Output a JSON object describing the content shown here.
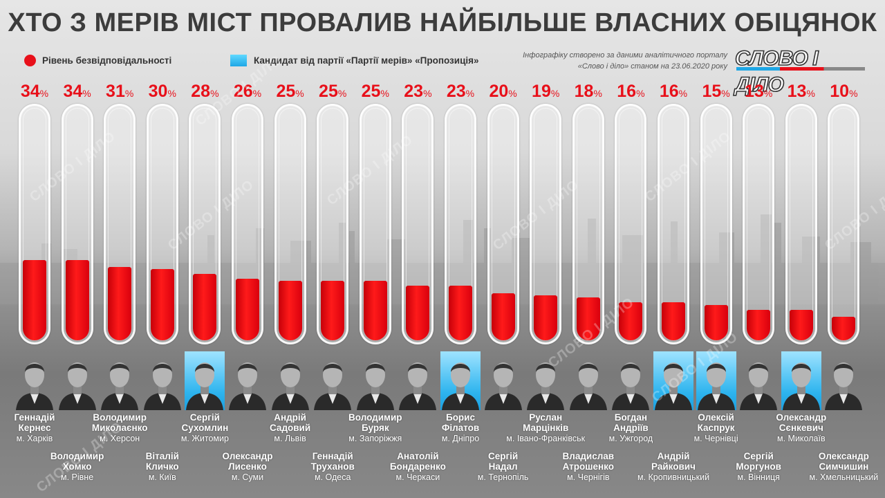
{
  "title": "ХТО З МЕРІВ МІСТ ПРОВАЛИВ НАЙБІЛЬШЕ ВЛАСНИХ ОБІЦЯНОК",
  "legend": {
    "red_label": "Рівень безвідповідальності",
    "blue_label": "Кандидат від партії «Партії мерів» «Пропозиція»"
  },
  "source": {
    "line1": "Інфографіку створено за даними аналітичного порталу",
    "line2": "«Слово і діло» станом на 23.06.2020 року"
  },
  "logo_text": "СЛОВО І ДІЛО",
  "watermark_text": "СЛОВО І ДІЛО",
  "colors": {
    "red": "#e8101a",
    "blue": "#1ea7e6"
  },
  "chart_data": {
    "type": "bar",
    "unit": "%",
    "ylim": [
      0,
      100
    ],
    "categories": [
      "Геннадій Кернес",
      "Володимир Хомко",
      "Володимир Миколаєнко",
      "Віталій Кличко",
      "Сергій Сухомлин",
      "Олександр Лисенко",
      "Андрій Садовий",
      "Геннадій Труханов",
      "Володимир Буряк",
      "Анатолій Бондаренко",
      "Борис Філатов",
      "Сергій Надал",
      "Руслан Марцінків",
      "Владислав Атрошенко",
      "Богдан Андріїв",
      "Андрій Райкович",
      "Олексій Каспрук",
      "Сергій Моргунов",
      "Олександр Сєнкевич",
      "Олександр Симчишин"
    ],
    "values": [
      34,
      34,
      31,
      30,
      28,
      26,
      25,
      25,
      25,
      23,
      23,
      20,
      19,
      18,
      16,
      16,
      15,
      13,
      13,
      10
    ]
  },
  "mayors": [
    {
      "first": "Геннадій",
      "last": "Кернес",
      "city": "м. Харків",
      "highlight": false
    },
    {
      "first": "Володимир",
      "last": "Хомко",
      "city": "м. Рівне",
      "highlight": false
    },
    {
      "first": "Володимир",
      "last": "Миколаєнко",
      "city": "м. Херсон",
      "highlight": false
    },
    {
      "first": "Віталій",
      "last": "Кличко",
      "city": "м. Київ",
      "highlight": false
    },
    {
      "first": "Сергій",
      "last": "Сухомлин",
      "city": "м. Житомир",
      "highlight": true
    },
    {
      "first": "Олександр",
      "last": "Лисенко",
      "city": "м. Суми",
      "highlight": false
    },
    {
      "first": "Андрій",
      "last": "Садовий",
      "city": "м. Львів",
      "highlight": false
    },
    {
      "first": "Геннадій",
      "last": "Труханов",
      "city": "м. Одеса",
      "highlight": false
    },
    {
      "first": "Володимир",
      "last": "Буряк",
      "city": "м. Запоріжжя",
      "highlight": false
    },
    {
      "first": "Анатолій",
      "last": "Бондаренко",
      "city": "м. Черкаси",
      "highlight": false
    },
    {
      "first": "Борис",
      "last": "Філатов",
      "city": "м. Дніпро",
      "highlight": true
    },
    {
      "first": "Сергій",
      "last": "Надал",
      "city": "м. Тернопіль",
      "highlight": false
    },
    {
      "first": "Руслан",
      "last": "Марцінків",
      "city": "м. Івано-Франківськ",
      "highlight": false
    },
    {
      "first": "Владислав",
      "last": "Атрошенко",
      "city": "м. Чернігів",
      "highlight": false
    },
    {
      "first": "Богдан",
      "last": "Андріїв",
      "city": "м. Ужгород",
      "highlight": false
    },
    {
      "first": "Андрій",
      "last": "Райкович",
      "city": "м. Кропивницький",
      "highlight": true
    },
    {
      "first": "Олексій",
      "last": "Каспрук",
      "city": "м. Чернівці",
      "highlight": true
    },
    {
      "first": "Сергій",
      "last": "Моргунов",
      "city": "м. Вінниця",
      "highlight": false
    },
    {
      "first": "Олександр",
      "last": "Сєнкевич",
      "city": "м. Миколаїв",
      "highlight": true
    },
    {
      "first": "Олександр",
      "last": "Симчишин",
      "city": "м. Хмельницький",
      "highlight": false
    }
  ]
}
